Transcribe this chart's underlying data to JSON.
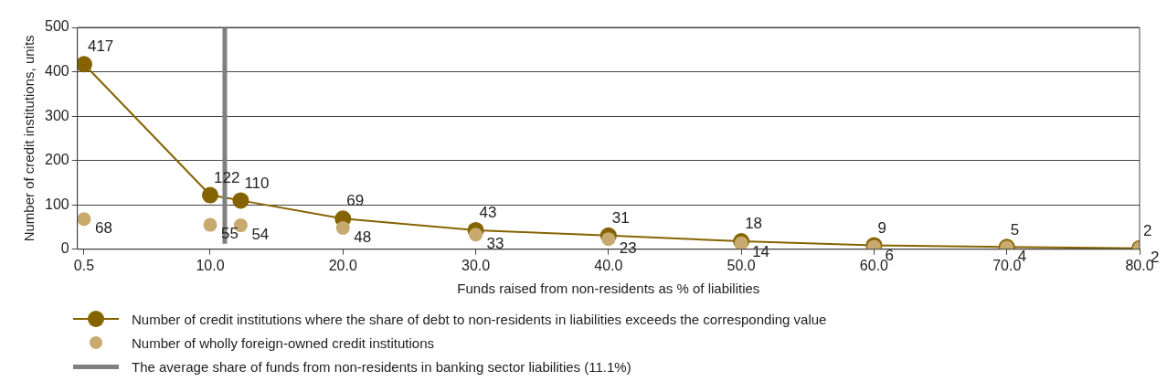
{
  "chart_data": {
    "type": "line",
    "xlabel": "Funds raised from non-residents as % of liabilities",
    "ylabel": "Number of credit institutions, units",
    "x": [
      0.5,
      10,
      12.3,
      20,
      30,
      40,
      50,
      60,
      70,
      80
    ],
    "series": [
      {
        "name": "Number of credit institutions where the share of debt to non-residents in liabilities exceeds the corresponding value",
        "type": "line",
        "color": "#856300",
        "values": [
          417,
          122,
          110,
          69,
          43,
          31,
          18,
          9,
          5,
          2
        ]
      },
      {
        "name": "Number of wholly foreign-owned credit institutions",
        "type": "scatter",
        "color": "#c8a96e",
        "values": [
          68,
          55,
          54,
          48,
          33,
          23,
          14,
          6,
          4,
          2
        ]
      }
    ],
    "xlim": [
      0,
      80
    ],
    "xticks": [
      {
        "value": 0.5,
        "label": "0.5"
      },
      {
        "value": 10,
        "label": "10.0"
      },
      {
        "value": 20,
        "label": "20.0"
      },
      {
        "value": 30,
        "label": "30.0"
      },
      {
        "value": 40,
        "label": "40.0"
      },
      {
        "value": 50,
        "label": "50.0"
      },
      {
        "value": 60,
        "label": "60.0"
      },
      {
        "value": 70,
        "label": "70.0"
      },
      {
        "value": 80,
        "label": "80.0"
      }
    ],
    "ylim": [
      0,
      500
    ],
    "yticks": [
      0,
      100,
      200,
      300,
      400,
      500
    ],
    "ref_lines": [
      {
        "axis": "x",
        "value": 11.1,
        "label": "The average share of funds from non-residents in banking sector liabilities (11.1%)",
        "color": "#808080"
      }
    ],
    "grid": "y",
    "legend": "bottom",
    "marker": "circle",
    "data_labels": true
  }
}
